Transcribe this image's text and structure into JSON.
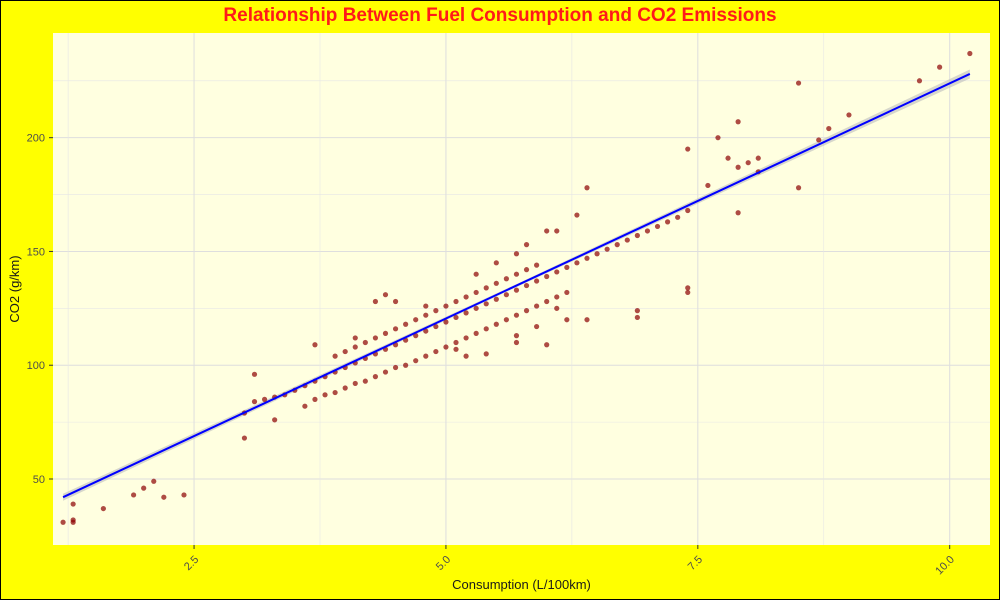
{
  "chart_data": {
    "type": "scatter",
    "title": "Relationship Between Fuel Consumption and CO2 Emissions",
    "xlabel": "Consumption (L/100km)",
    "ylabel": "CO2 (g/km)",
    "xlim": [
      1.1,
      10.4
    ],
    "ylim": [
      21,
      246
    ],
    "x_ticks": [
      2.5,
      5.0,
      7.5,
      10.0
    ],
    "x_tick_labels": [
      "2.5",
      "5.0",
      "7.5",
      "10.0"
    ],
    "y_ticks": [
      50,
      100,
      150,
      200
    ],
    "y_tick_labels": [
      "50",
      "100",
      "150",
      "200"
    ],
    "grid": true,
    "colors": {
      "background": "#ffff00",
      "panel": "#ffffe0",
      "points": "#8b0000",
      "fit_line": "#0000ff",
      "confidence_band": "#bdbdbd",
      "title": "#ff1a1a"
    },
    "points": [
      {
        "x": 1.2,
        "y": 31
      },
      {
        "x": 1.3,
        "y": 32
      },
      {
        "x": 1.3,
        "y": 31
      },
      {
        "x": 1.3,
        "y": 39
      },
      {
        "x": 1.6,
        "y": 37
      },
      {
        "x": 1.9,
        "y": 43
      },
      {
        "x": 2.0,
        "y": 46
      },
      {
        "x": 2.1,
        "y": 49
      },
      {
        "x": 2.2,
        "y": 42
      },
      {
        "x": 2.4,
        "y": 43
      },
      {
        "x": 3.0,
        "y": 68
      },
      {
        "x": 3.0,
        "y": 79
      },
      {
        "x": 3.1,
        "y": 84
      },
      {
        "x": 3.1,
        "y": 96
      },
      {
        "x": 3.2,
        "y": 85
      },
      {
        "x": 3.3,
        "y": 86
      },
      {
        "x": 3.3,
        "y": 76
      },
      {
        "x": 3.4,
        "y": 87
      },
      {
        "x": 3.5,
        "y": 89
      },
      {
        "x": 3.6,
        "y": 91
      },
      {
        "x": 3.6,
        "y": 82
      },
      {
        "x": 3.7,
        "y": 85
      },
      {
        "x": 3.7,
        "y": 93
      },
      {
        "x": 3.8,
        "y": 87
      },
      {
        "x": 3.8,
        "y": 95
      },
      {
        "x": 3.9,
        "y": 88
      },
      {
        "x": 3.9,
        "y": 97
      },
      {
        "x": 4.0,
        "y": 90
      },
      {
        "x": 4.0,
        "y": 99
      },
      {
        "x": 4.1,
        "y": 92
      },
      {
        "x": 4.1,
        "y": 101
      },
      {
        "x": 4.2,
        "y": 93
      },
      {
        "x": 4.2,
        "y": 103
      },
      {
        "x": 4.3,
        "y": 95
      },
      {
        "x": 4.3,
        "y": 105
      },
      {
        "x": 4.4,
        "y": 97
      },
      {
        "x": 4.4,
        "y": 107
      },
      {
        "x": 4.5,
        "y": 99
      },
      {
        "x": 4.5,
        "y": 109
      },
      {
        "x": 4.6,
        "y": 100
      },
      {
        "x": 4.6,
        "y": 111
      },
      {
        "x": 4.7,
        "y": 102
      },
      {
        "x": 4.7,
        "y": 113
      },
      {
        "x": 4.8,
        "y": 104
      },
      {
        "x": 4.8,
        "y": 115
      },
      {
        "x": 4.9,
        "y": 106
      },
      {
        "x": 4.9,
        "y": 117
      },
      {
        "x": 5.0,
        "y": 108
      },
      {
        "x": 5.0,
        "y": 119
      },
      {
        "x": 5.1,
        "y": 110
      },
      {
        "x": 5.1,
        "y": 121
      },
      {
        "x": 5.2,
        "y": 112
      },
      {
        "x": 5.2,
        "y": 123
      },
      {
        "x": 5.3,
        "y": 114
      },
      {
        "x": 5.3,
        "y": 125
      },
      {
        "x": 5.4,
        "y": 116
      },
      {
        "x": 5.4,
        "y": 127
      },
      {
        "x": 5.5,
        "y": 118
      },
      {
        "x": 5.5,
        "y": 129
      },
      {
        "x": 5.6,
        "y": 120
      },
      {
        "x": 5.6,
        "y": 131
      },
      {
        "x": 5.7,
        "y": 122
      },
      {
        "x": 5.7,
        "y": 133
      },
      {
        "x": 5.8,
        "y": 124
      },
      {
        "x": 5.8,
        "y": 135
      },
      {
        "x": 5.9,
        "y": 126
      },
      {
        "x": 5.9,
        "y": 137
      },
      {
        "x": 6.0,
        "y": 128
      },
      {
        "x": 6.0,
        "y": 139
      },
      {
        "x": 6.1,
        "y": 130
      },
      {
        "x": 6.1,
        "y": 141
      },
      {
        "x": 6.2,
        "y": 132
      },
      {
        "x": 6.2,
        "y": 143
      },
      {
        "x": 6.3,
        "y": 145
      },
      {
        "x": 6.4,
        "y": 147
      },
      {
        "x": 6.5,
        "y": 149
      },
      {
        "x": 6.6,
        "y": 151
      },
      {
        "x": 6.7,
        "y": 153
      },
      {
        "x": 6.8,
        "y": 155
      },
      {
        "x": 6.9,
        "y": 157
      },
      {
        "x": 7.0,
        "y": 159
      },
      {
        "x": 7.1,
        "y": 161
      },
      {
        "x": 7.2,
        "y": 163
      },
      {
        "x": 7.3,
        "y": 165
      },
      {
        "x": 7.4,
        "y": 168
      },
      {
        "x": 3.9,
        "y": 104
      },
      {
        "x": 4.0,
        "y": 106
      },
      {
        "x": 4.1,
        "y": 108
      },
      {
        "x": 4.2,
        "y": 110
      },
      {
        "x": 4.3,
        "y": 112
      },
      {
        "x": 4.4,
        "y": 114
      },
      {
        "x": 4.5,
        "y": 116
      },
      {
        "x": 4.6,
        "y": 118
      },
      {
        "x": 4.7,
        "y": 120
      },
      {
        "x": 4.8,
        "y": 122
      },
      {
        "x": 4.9,
        "y": 124
      },
      {
        "x": 5.0,
        "y": 126
      },
      {
        "x": 5.1,
        "y": 128
      },
      {
        "x": 5.2,
        "y": 130
      },
      {
        "x": 5.3,
        "y": 132
      },
      {
        "x": 5.4,
        "y": 134
      },
      {
        "x": 5.5,
        "y": 136
      },
      {
        "x": 5.6,
        "y": 138
      },
      {
        "x": 5.7,
        "y": 140
      },
      {
        "x": 5.8,
        "y": 142
      },
      {
        "x": 5.9,
        "y": 144
      },
      {
        "x": 6.0,
        "y": 159
      },
      {
        "x": 6.1,
        "y": 159
      },
      {
        "x": 6.3,
        "y": 166
      },
      {
        "x": 6.4,
        "y": 178
      },
      {
        "x": 6.2,
        "y": 120
      },
      {
        "x": 6.0,
        "y": 109
      },
      {
        "x": 6.4,
        "y": 120
      },
      {
        "x": 6.9,
        "y": 121
      },
      {
        "x": 6.9,
        "y": 124
      },
      {
        "x": 7.4,
        "y": 132
      },
      {
        "x": 7.4,
        "y": 134
      },
      {
        "x": 7.4,
        "y": 195
      },
      {
        "x": 7.6,
        "y": 179
      },
      {
        "x": 7.7,
        "y": 200
      },
      {
        "x": 7.8,
        "y": 191
      },
      {
        "x": 7.9,
        "y": 187
      },
      {
        "x": 7.9,
        "y": 207
      },
      {
        "x": 7.9,
        "y": 167
      },
      {
        "x": 8.0,
        "y": 189
      },
      {
        "x": 8.1,
        "y": 185
      },
      {
        "x": 8.1,
        "y": 191
      },
      {
        "x": 8.5,
        "y": 224
      },
      {
        "x": 8.5,
        "y": 178
      },
      {
        "x": 8.7,
        "y": 199
      },
      {
        "x": 8.8,
        "y": 204
      },
      {
        "x": 9.0,
        "y": 210
      },
      {
        "x": 9.7,
        "y": 225
      },
      {
        "x": 9.9,
        "y": 231
      },
      {
        "x": 10.2,
        "y": 237
      },
      {
        "x": 5.2,
        "y": 104
      },
      {
        "x": 5.4,
        "y": 105
      },
      {
        "x": 5.7,
        "y": 110
      },
      {
        "x": 5.7,
        "y": 113
      },
      {
        "x": 6.1,
        "y": 125
      },
      {
        "x": 4.3,
        "y": 128
      },
      {
        "x": 4.4,
        "y": 131
      },
      {
        "x": 4.5,
        "y": 128
      },
      {
        "x": 3.7,
        "y": 109
      },
      {
        "x": 4.1,
        "y": 112
      },
      {
        "x": 5.7,
        "y": 149
      },
      {
        "x": 5.8,
        "y": 153
      },
      {
        "x": 5.5,
        "y": 145
      },
      {
        "x": 5.3,
        "y": 140
      },
      {
        "x": 4.8,
        "y": 126
      },
      {
        "x": 5.9,
        "y": 117
      },
      {
        "x": 5.1,
        "y": 107
      }
    ],
    "fit_line": {
      "x": [
        1.2,
        10.2
      ],
      "y": [
        42,
        228
      ]
    }
  }
}
